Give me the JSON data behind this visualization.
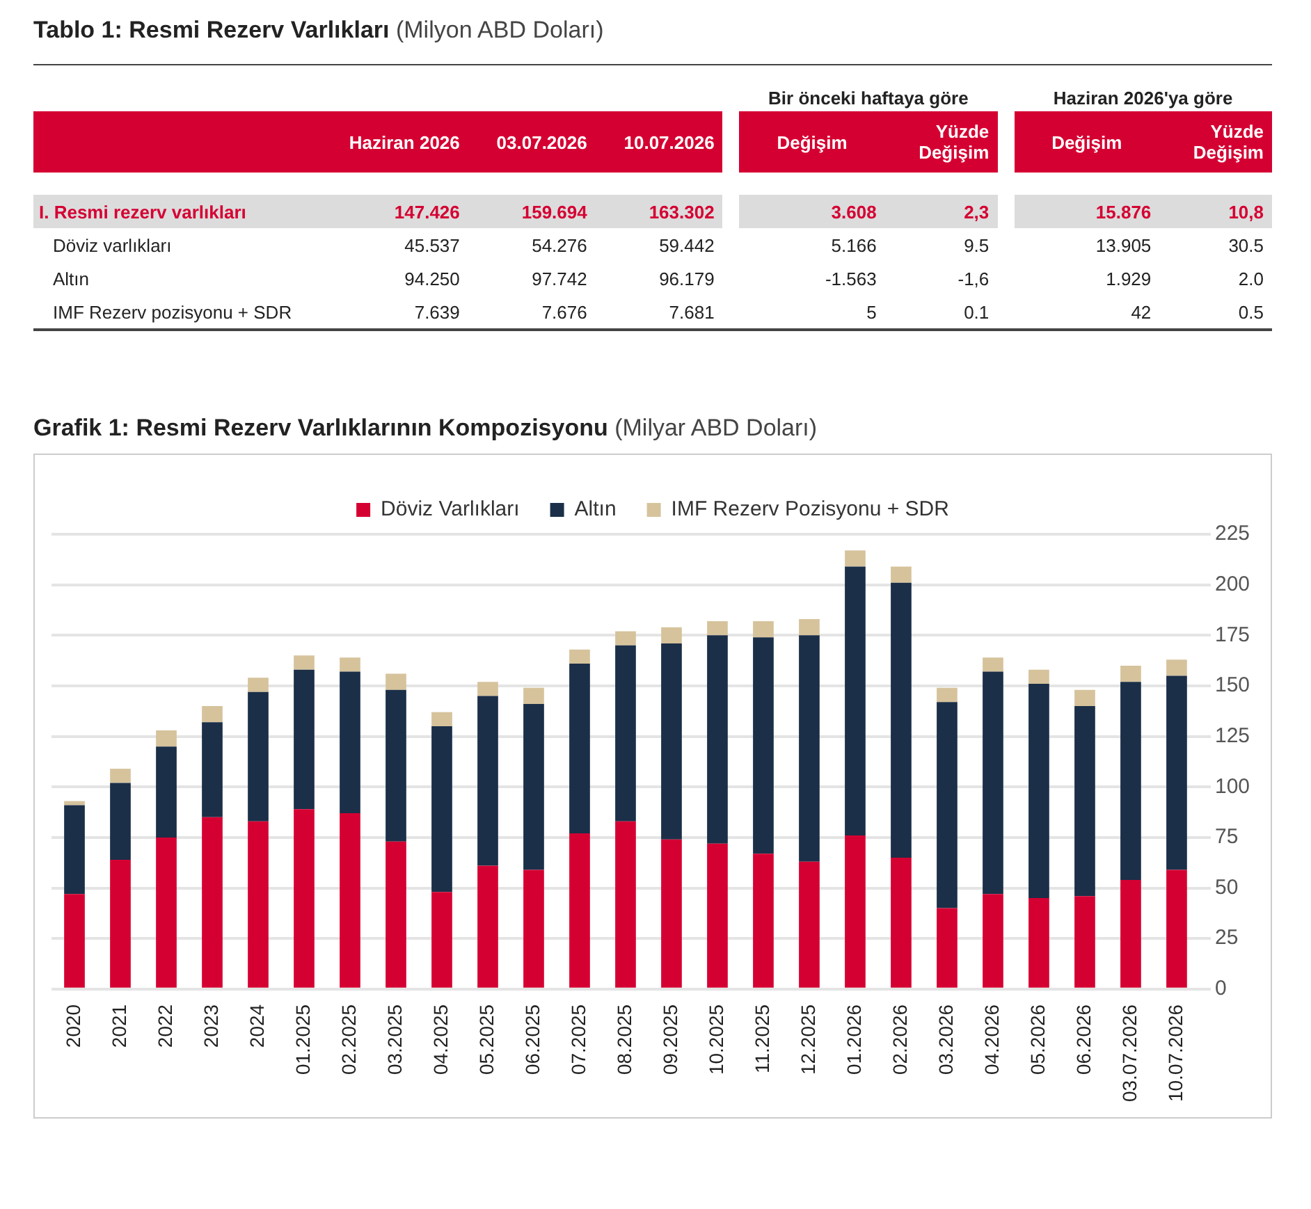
{
  "chart_data": [
    {
      "type": "other",
      "title": "Tablo 1: Resmi Rezerv Varlıkları",
      "subtitle": "(Milyon ABD Doları)",
      "annotations": [
        "Bir önceki haftaya göre",
        "Haziran 2026'ya göre"
      ],
      "categories": [
        "Haziran 2026",
        "03.07.2026",
        "10.07.2026",
        "Değişim",
        "Yüzde Değişim",
        "Değişim",
        "Yüzde Değişim"
      ],
      "y_categories": [
        "I. Resmi rezerv varlıkları",
        "Döviz varlıkları",
        "Altın",
        "IMF Rezerv pozisyonu + SDR"
      ],
      "cell_labels": [
        [
          "147.426",
          "159.694",
          "163.302",
          "3.608",
          "2,3",
          "15.876",
          "10,8"
        ],
        [
          "45.537",
          "54.276",
          "59.442",
          "5.166",
          "9.5",
          "13.905",
          "30.5"
        ],
        [
          "94.250",
          "97.742",
          "96.179",
          "-1.563",
          "-1,6",
          "1.929",
          "2.0"
        ],
        [
          "7.639",
          "7.676",
          "7.681",
          "5",
          "0.1",
          "42",
          "0.5"
        ]
      ]
    },
    {
      "type": "bar",
      "title": "Grafik 1: Resmi Rezerv Varlıklarının Kompozisyonu",
      "subtitle": "(Milyar ABD Doları)",
      "stacked": true,
      "legend": "top",
      "grid": "y",
      "categories": [
        "2020",
        "2021",
        "2022",
        "2023",
        "2024",
        "01.2025",
        "02.2025",
        "03.2025",
        "04.2025",
        "05.2025",
        "06.2025",
        "07.2025",
        "08.2025",
        "09.2025",
        "10.2025",
        "11.2025",
        "12.2025",
        "01.2026",
        "02.2026",
        "03.2026",
        "04.2026",
        "05.2026",
        "06.2026",
        "03.07.2026",
        "10.07.2026"
      ],
      "ylim": [
        0,
        225
      ],
      "yticks": [
        0,
        25,
        50,
        75,
        100,
        125,
        150,
        175,
        200,
        225
      ],
      "series": [
        {
          "name": "Döviz Varlıkları",
          "color": "#d50032",
          "values": [
            47,
            64,
            75,
            85,
            83,
            89,
            87,
            73,
            48,
            61,
            59,
            77,
            83,
            74,
            72,
            67,
            63,
            76,
            65,
            40,
            47,
            45,
            46,
            54,
            59
          ]
        },
        {
          "name": "Altın",
          "color": "#1b2f48",
          "values": [
            44,
            38,
            45,
            47,
            64,
            69,
            70,
            75,
            82,
            84,
            82,
            84,
            87,
            97,
            103,
            107,
            112,
            133,
            136,
            102,
            110,
            106,
            94,
            98,
            96
          ]
        },
        {
          "name": "IMF Rezerv Pozisyonu + SDR",
          "color": "#d6c39c",
          "values": [
            2,
            7,
            8,
            8,
            7,
            7,
            7,
            8,
            7,
            7,
            8,
            7,
            7,
            8,
            7,
            8,
            8,
            8,
            8,
            7,
            7,
            7,
            8,
            8,
            8
          ]
        }
      ]
    }
  ]
}
